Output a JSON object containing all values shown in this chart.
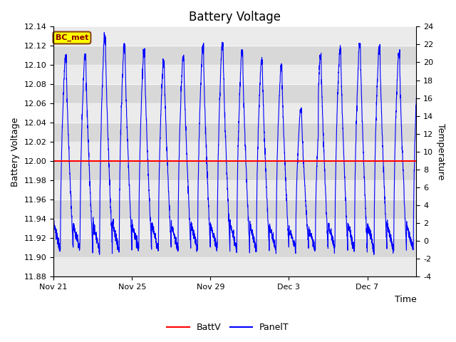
{
  "title": "Battery Voltage",
  "ylabel_left": "Battery Voltage",
  "ylabel_right": "Temperature",
  "xlabel": "Time",
  "ylim_left": [
    11.88,
    12.14
  ],
  "ylim_right": [
    -4,
    24
  ],
  "yticks_left": [
    11.88,
    11.9,
    11.92,
    11.94,
    11.96,
    11.98,
    12.0,
    12.02,
    12.04,
    12.06,
    12.08,
    12.1,
    12.12,
    12.14
  ],
  "yticks_right": [
    -4,
    -2,
    0,
    2,
    4,
    6,
    8,
    10,
    12,
    14,
    16,
    18,
    20,
    22,
    24
  ],
  "xtick_labels": [
    "Nov 21",
    "Nov 25",
    "Nov 29",
    "Dec 3",
    "Dec 7"
  ],
  "xtick_positions": [
    0,
    4,
    8,
    12,
    16
  ],
  "xlim": [
    0,
    18.5
  ],
  "battv_value": 12.0,
  "battv_color": "#FF0000",
  "panelt_color": "#0000FF",
  "bg_color": "#E0E0E0",
  "band_colors": [
    "#EBEBEB",
    "#D8D8D8"
  ],
  "label_text": "BC_met",
  "label_bg": "#FFFF00",
  "label_border": "#8B4513",
  "label_text_color": "#8B0000",
  "legend_labels": [
    "BattV",
    "PanelT"
  ],
  "title_fontsize": 12,
  "axis_label_fontsize": 9,
  "tick_fontsize": 8,
  "n_points": 3000,
  "n_days": 18.5
}
